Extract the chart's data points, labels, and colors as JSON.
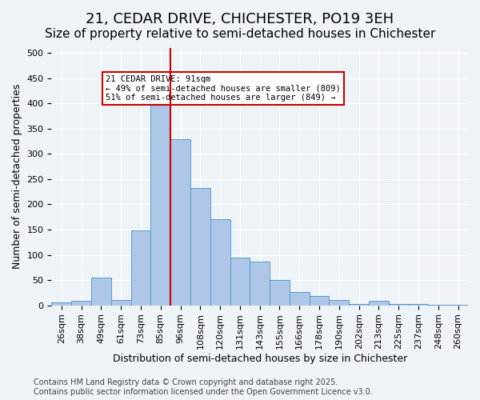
{
  "title": "21, CEDAR DRIVE, CHICHESTER, PO19 3EH",
  "subtitle": "Size of property relative to semi-detached houses in Chichester",
  "xlabel": "Distribution of semi-detached houses by size in Chichester",
  "ylabel": "Number of semi-detached properties",
  "bin_labels": [
    "26sqm",
    "38sqm",
    "49sqm",
    "61sqm",
    "73sqm",
    "85sqm",
    "96sqm",
    "108sqm",
    "120sqm",
    "131sqm",
    "143sqm",
    "155sqm",
    "166sqm",
    "178sqm",
    "190sqm",
    "202sqm",
    "213sqm",
    "225sqm",
    "237sqm",
    "248sqm",
    "260sqm"
  ],
  "bin_values": [
    5,
    9,
    55,
    10,
    148,
    420,
    330,
    232,
    170,
    95,
    86,
    50,
    27,
    18,
    10,
    3,
    9,
    3,
    2,
    1,
    1
  ],
  "bar_color": "#aec6e8",
  "bar_edge_color": "#5a9ac8",
  "vline_x": 5.5,
  "vline_color": "#cc0000",
  "annotation_text": "21 CEDAR DRIVE: 91sqm\n← 49% of semi-detached houses are smaller (809)\n51% of semi-detached houses are larger (849) →",
  "annotation_box_color": "#ffffff",
  "annotation_box_edge": "#cc0000",
  "ylim": [
    0,
    510
  ],
  "yticks": [
    0,
    50,
    100,
    150,
    200,
    250,
    300,
    350,
    400,
    450,
    500
  ],
  "bg_color": "#eef3f8",
  "footer_text": "Contains HM Land Registry data © Crown copyright and database right 2025.\nContains public sector information licensed under the Open Government Licence v3.0.",
  "title_fontsize": 13,
  "subtitle_fontsize": 11,
  "axis_fontsize": 9,
  "tick_fontsize": 8,
  "footer_fontsize": 7
}
